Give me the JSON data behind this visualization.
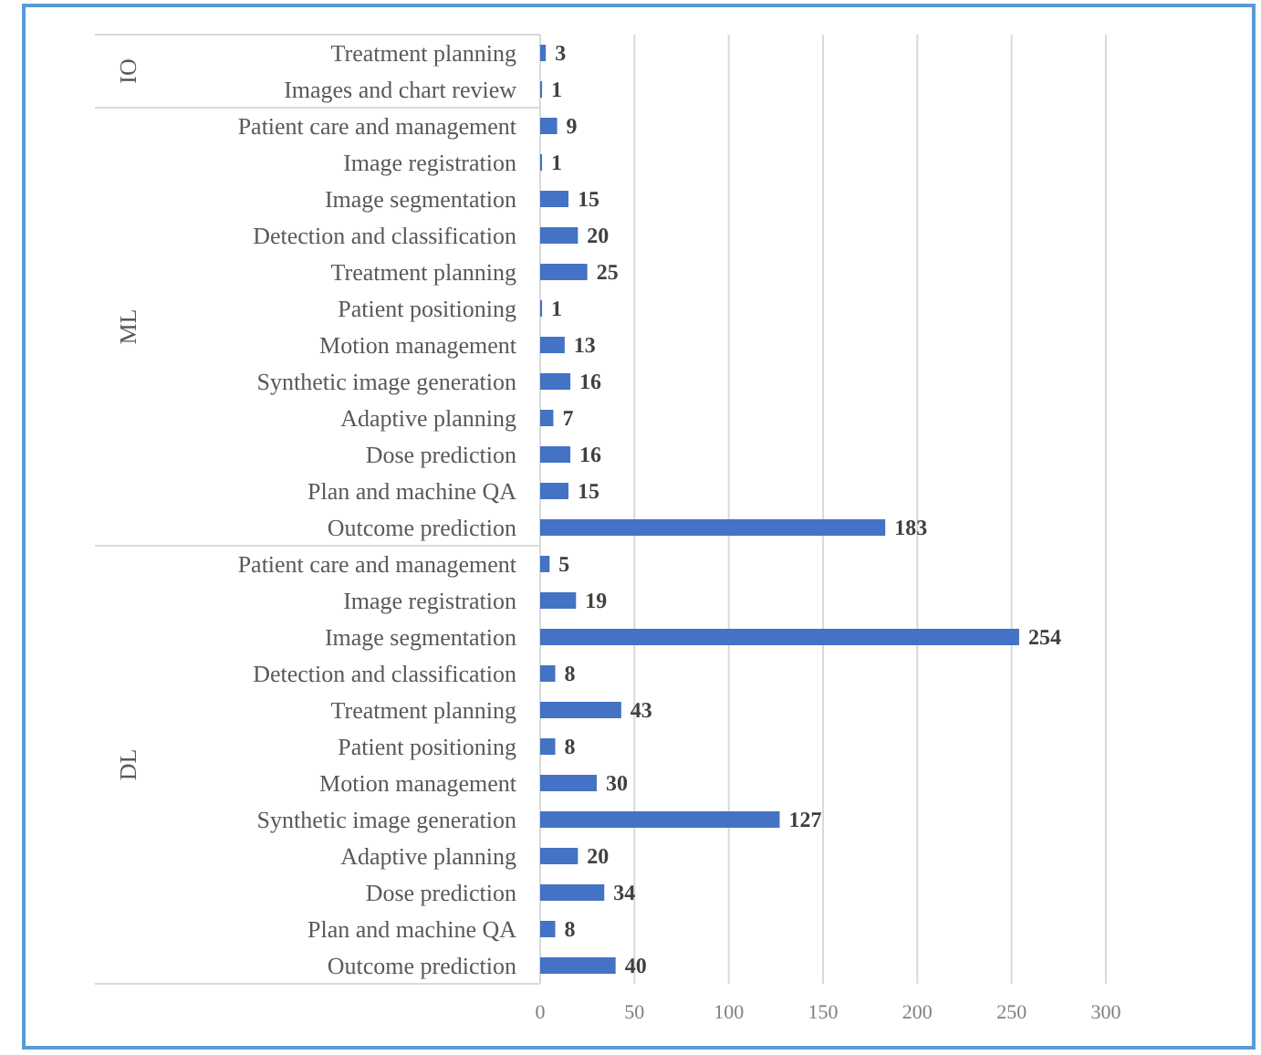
{
  "chart_data": {
    "type": "bar",
    "orientation": "horizontal",
    "categories": [
      "Treatment planning",
      "Images and chart review",
      "Patient care and management",
      "Image registration",
      "Image segmentation",
      "Detection and classification",
      "Treatment planning",
      "Patient positioning",
      "Motion management",
      "Synthetic image generation",
      "Adaptive planning",
      "Dose prediction",
      "Plan and machine QA",
      "Outcome prediction",
      "Patient care and management",
      "Image registration",
      "Image segmentation",
      "Detection and classification",
      "Treatment planning",
      "Patient positioning",
      "Motion management",
      "Synthetic image generation",
      "Adaptive planning",
      "Dose prediction",
      "Plan and machine QA",
      "Outcome prediction"
    ],
    "values": [
      3,
      1,
      9,
      1,
      15,
      20,
      25,
      1,
      13,
      16,
      7,
      16,
      15,
      183,
      5,
      19,
      254,
      8,
      43,
      8,
      30,
      127,
      20,
      34,
      8,
      40
    ],
    "color": "#4472c4",
    "data_labels": true,
    "xlim": [
      0,
      300
    ],
    "xticks": [
      0,
      50,
      100,
      150,
      200,
      250,
      300
    ],
    "grid": "x",
    "annotations": [
      "IO",
      "ML",
      "DL"
    ]
  }
}
